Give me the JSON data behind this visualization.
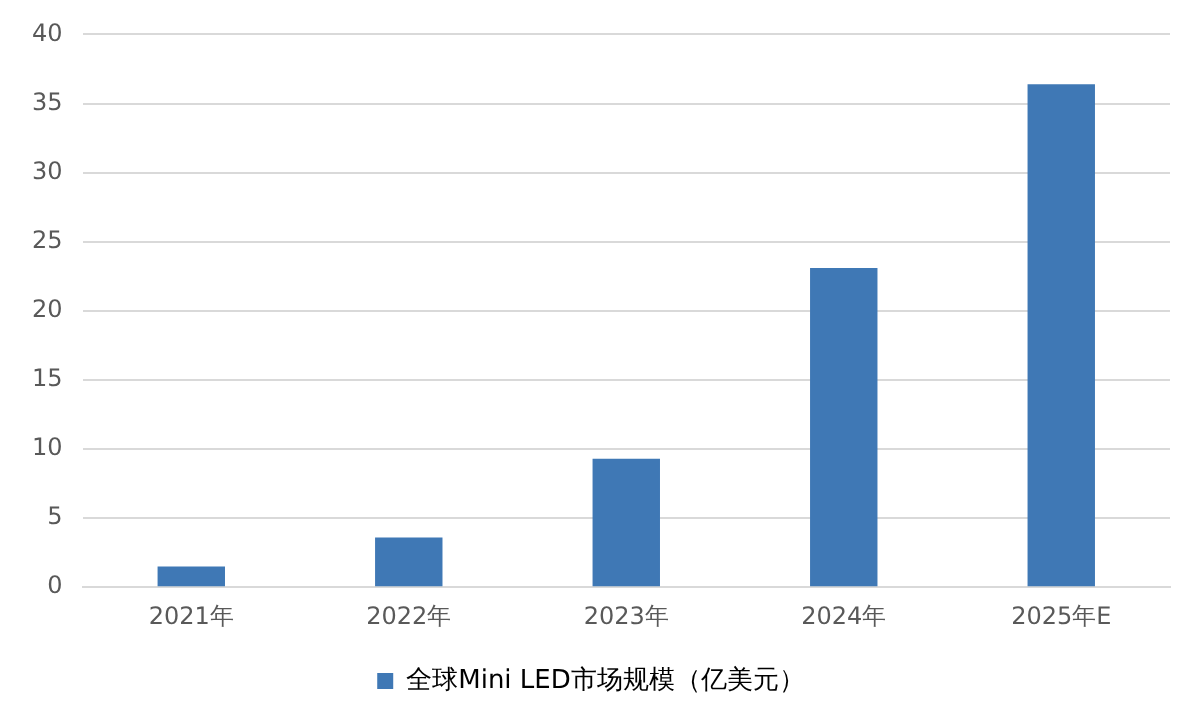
{
  "chart_data": {
    "type": "bar",
    "categories": [
      "2021年",
      "2022年",
      "2023年",
      "2024年",
      "2025年E"
    ],
    "series": [
      {
        "name": "全球Mini LED市场规模（亿美元）",
        "color": "#3f78b5",
        "values": [
          1.5,
          3.6,
          9.3,
          23.1,
          36.4
        ]
      }
    ],
    "ylim": [
      0,
      40
    ],
    "yticks": [
      0,
      5,
      10,
      15,
      20,
      25,
      30,
      35,
      40
    ],
    "grid": "y",
    "legend": "bottom"
  }
}
